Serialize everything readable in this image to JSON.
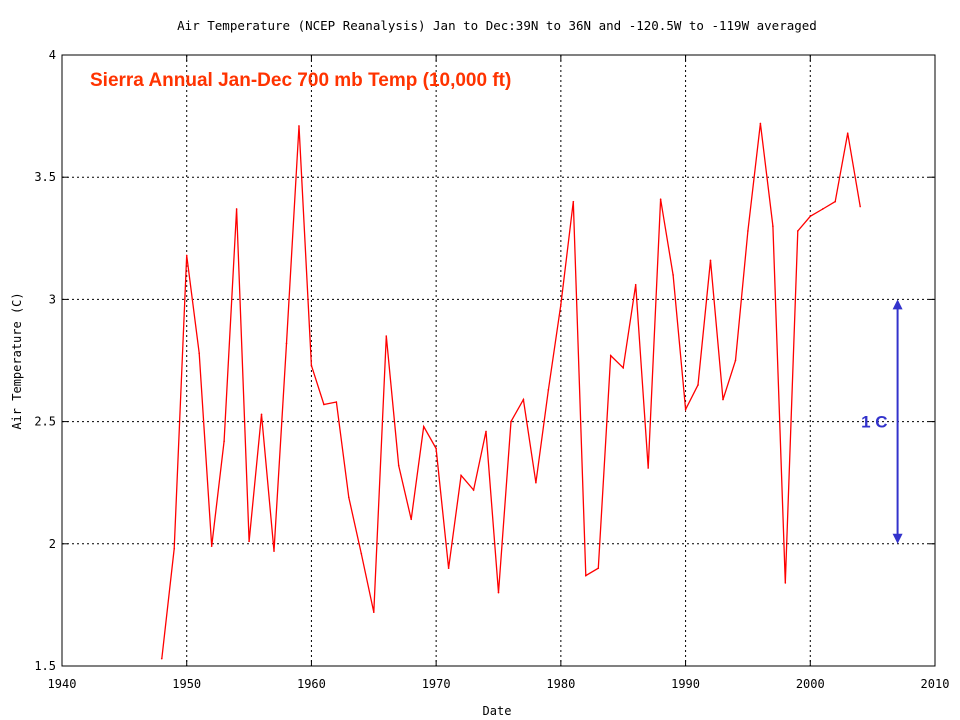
{
  "chart_data": {
    "type": "line",
    "title": "Air Temperature (NCEP Reanalysis) Jan to Dec:39N to 36N and -120.5W to -119W averaged",
    "subtitle": "Sierra Annual Jan-Dec 700 mb Temp  (10,000 ft)",
    "xlabel": "Date",
    "ylabel": "Air Temperature (C)",
    "xlim": [
      1940,
      2010
    ],
    "ylim": [
      1.5,
      4
    ],
    "xticks": [
      "1940",
      "1950",
      "1960",
      "1970",
      "1980",
      "1990",
      "2000",
      "2010"
    ],
    "yticks": [
      "1.5",
      "2",
      "2.5",
      "3",
      "3.5",
      "4"
    ],
    "grid": true,
    "series_color": "#ff0000",
    "x": [
      1948,
      1949,
      1950,
      1951,
      1952,
      1953,
      1954,
      1955,
      1956,
      1957,
      1958,
      1959,
      1960,
      1961,
      1962,
      1963,
      1964,
      1965,
      1966,
      1967,
      1968,
      1969,
      1970,
      1971,
      1972,
      1973,
      1974,
      1975,
      1976,
      1977,
      1978,
      1979,
      1980,
      1981,
      1982,
      1983,
      1984,
      1985,
      1986,
      1987,
      1988,
      1989,
      1990,
      1991,
      1992,
      1993,
      1994,
      1995,
      1996,
      1997,
      1998,
      1999,
      2000,
      2001,
      2002,
      2003,
      2004
    ],
    "values": [
      1.53,
      1.98,
      3.18,
      2.78,
      1.99,
      2.42,
      3.37,
      2.01,
      2.53,
      1.97,
      2.82,
      3.71,
      2.73,
      2.57,
      2.58,
      2.19,
      1.96,
      1.72,
      2.85,
      2.32,
      2.1,
      2.48,
      2.39,
      1.9,
      2.28,
      2.22,
      2.46,
      1.8,
      2.5,
      2.59,
      2.25,
      2.63,
      2.98,
      3.4,
      1.87,
      1.9,
      2.77,
      2.72,
      3.06,
      2.31,
      3.41,
      3.1,
      2.55,
      2.65,
      3.16,
      2.59,
      2.75,
      3.28,
      3.72,
      3.3,
      1.84,
      3.28,
      3.34,
      3.37,
      3.4,
      3.68,
      3.38
    ],
    "annotation": {
      "label": "1 C",
      "from": 2,
      "to": 3,
      "x": 2007,
      "color": "#3333cc"
    }
  }
}
